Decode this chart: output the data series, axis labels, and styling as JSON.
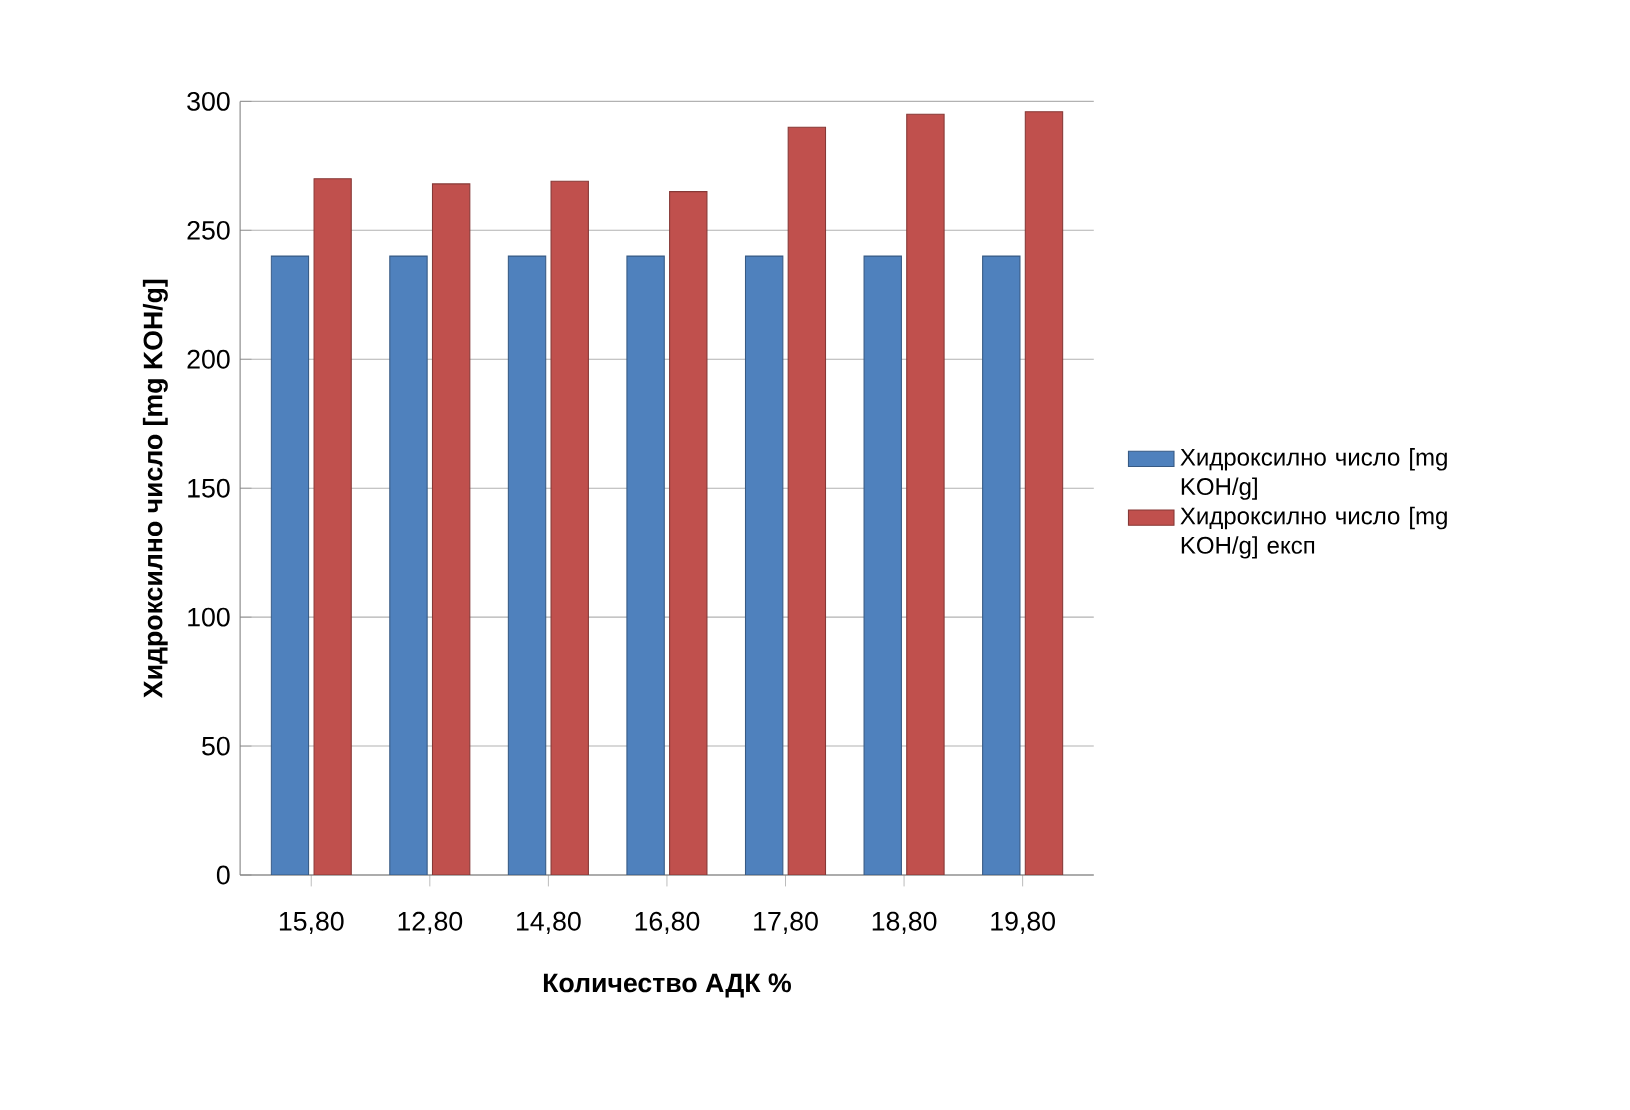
{
  "chart_data": {
    "type": "bar",
    "xlabel": "Количество АДК %",
    "ylabel": "Хидроксилно число [mg KOH/g]",
    "categories": [
      "15,80",
      "12,80",
      "14,80",
      "16,80",
      "17,80",
      "18,80",
      "19,80"
    ],
    "series": [
      {
        "name": "Хидроксилно число [mg KOH/g]",
        "color": "#4f81bd",
        "values": [
          240,
          240,
          240,
          240,
          240,
          240,
          240
        ]
      },
      {
        "name": "Хидроксилно число [mg KOH/g] експ",
        "color": "#c0504d",
        "values": [
          270,
          268,
          269,
          265,
          290,
          295,
          296
        ]
      }
    ],
    "ylim": [
      0,
      300
    ],
    "yticks": [
      0,
      50,
      100,
      150,
      200,
      250,
      300
    ],
    "grid": "y",
    "legend": "right"
  }
}
